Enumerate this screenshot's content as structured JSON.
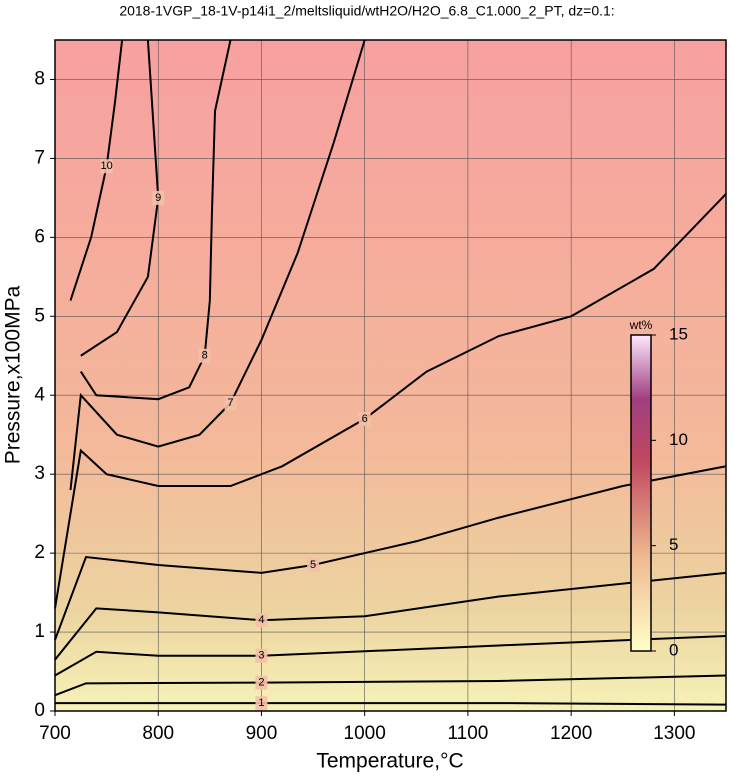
{
  "chart_data": {
    "type": "contour",
    "title": "2018-1VGP_18-1V-p14i1_2/meltsliquid/wtH2O/H2O_6.8_C1.000_2_PT, dz=0.1:",
    "x_label": "Temperature,°C",
    "y_label": "Pressure,x100MPa",
    "xlim": [
      700,
      1350
    ],
    "ylim": [
      0,
      8.5
    ],
    "xticks": [
      700,
      800,
      900,
      1000,
      1100,
      1200,
      1300
    ],
    "yticks": [
      0,
      1,
      2,
      3,
      4,
      5,
      6,
      7,
      8
    ],
    "grid": true,
    "color": "#000000",
    "contours": [
      {
        "level": 1,
        "x": [
          700,
          750,
          900,
          1130,
          1350
        ],
        "y": [
          0.1,
          0.1,
          0.1,
          0.1,
          0.08
        ]
      },
      {
        "level": 2,
        "x": [
          700,
          730,
          900,
          1130,
          1350
        ],
        "y": [
          0.2,
          0.35,
          0.36,
          0.38,
          0.45
        ]
      },
      {
        "level": 3,
        "x": [
          700,
          740,
          800,
          900,
          1130,
          1350
        ],
        "y": [
          0.45,
          0.75,
          0.7,
          0.7,
          0.83,
          0.95
        ]
      },
      {
        "level": 4,
        "x": [
          700,
          740,
          800,
          900,
          1000,
          1130,
          1350
        ],
        "y": [
          0.65,
          1.3,
          1.25,
          1.15,
          1.2,
          1.45,
          1.75
        ]
      },
      {
        "level": 5,
        "x": [
          700,
          730,
          800,
          900,
          950,
          1050,
          1130,
          1250,
          1350
        ],
        "y": [
          0.9,
          1.95,
          1.85,
          1.75,
          1.85,
          2.15,
          2.45,
          2.85,
          3.1
        ]
      },
      {
        "level": 6,
        "x": [
          700,
          725,
          750,
          800,
          870,
          920,
          1000,
          1060,
          1130,
          1200,
          1280,
          1350
        ],
        "y": [
          1.3,
          3.3,
          3.0,
          2.85,
          2.85,
          3.1,
          3.7,
          4.3,
          4.75,
          5.0,
          5.6,
          6.55
        ]
      },
      {
        "level": 7,
        "x": [
          715,
          725,
          760,
          800,
          840,
          870,
          900,
          935,
          970,
          1000
        ],
        "y": [
          2.8,
          4.0,
          3.5,
          3.35,
          3.5,
          3.9,
          4.7,
          5.8,
          7.2,
          8.5
        ]
      },
      {
        "level": 8,
        "x": [
          725,
          740,
          800,
          830,
          845,
          850,
          852,
          855,
          870
        ],
        "y": [
          4.3,
          4.0,
          3.95,
          4.1,
          4.5,
          5.2,
          6.3,
          7.6,
          8.5
        ]
      },
      {
        "level": 9,
        "x": [
          725,
          760,
          790,
          800,
          795,
          790
        ],
        "y": [
          4.5,
          4.8,
          5.5,
          6.5,
          7.5,
          8.5
        ]
      },
      {
        "level": 10,
        "x": [
          715,
          735,
          750,
          758,
          765
        ],
        "y": [
          5.2,
          6.0,
          6.9,
          7.7,
          8.5
        ]
      }
    ],
    "colorbar": {
      "label": "wt%",
      "lim": [
        0,
        15
      ],
      "ticks": [
        0,
        5,
        10,
        15
      ]
    }
  }
}
